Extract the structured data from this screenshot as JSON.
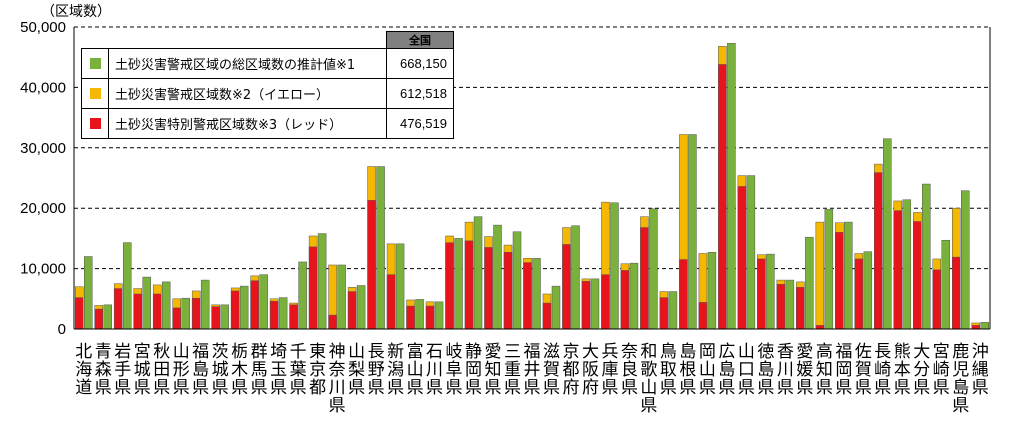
{
  "colors": {
    "red": "#e8141c",
    "yellow": "#f5b800",
    "green": "#7ab03c"
  },
  "legend": {
    "header": "全国",
    "items": [
      {
        "label": "土砂災害警戒区域の総区域数の推計値※1",
        "value": "668,150",
        "color_key": "green"
      },
      {
        "label": "土砂災害警戒区域数※2（イエロー）",
        "value": "612,518",
        "color_key": "yellow"
      },
      {
        "label": "土砂災害特別警戒区域数※3（レッド）",
        "value": "476,519",
        "color_key": "red"
      }
    ]
  },
  "chart_data": {
    "type": "bar",
    "ylabel": "（区域数）",
    "ylim": [
      0,
      50000
    ],
    "yticks": [
      "0",
      "10,000",
      "20,000",
      "30,000",
      "40,000",
      "50,000"
    ],
    "grid": "dashed horizontal",
    "categories": [
      "北海道",
      "青森県",
      "岩手県",
      "宮城県",
      "秋田県",
      "山形県",
      "福島県",
      "茨城県",
      "栃木県",
      "群馬県",
      "埼玉県",
      "千葉県",
      "東京都",
      "神奈川県",
      "山梨県",
      "長野県",
      "新潟県",
      "富山県",
      "石川県",
      "岐阜県",
      "静岡県",
      "愛知県",
      "三重県",
      "福井県",
      "滋賀県",
      "京都府",
      "大阪府",
      "兵庫県",
      "奈良県",
      "和歌山県",
      "鳥取県",
      "島根県",
      "岡山県",
      "広島県",
      "山口県",
      "徳島県",
      "香川県",
      "愛媛県",
      "高知県",
      "福岡県",
      "佐賀県",
      "長崎県",
      "熊本県",
      "大分県",
      "宮崎県",
      "鹿児島県",
      "沖縄県"
    ],
    "series": [
      {
        "name": "土砂災害特別警戒区域数※3（レッド）",
        "color_key": "red",
        "values": [
          5200,
          3300,
          6700,
          5800,
          5800,
          3500,
          5100,
          3700,
          6300,
          8000,
          4600,
          4000,
          13600,
          2300,
          6200,
          21300,
          9000,
          3800,
          3800,
          14300,
          14600,
          13500,
          12700,
          11000,
          4300,
          14000,
          7900,
          9000,
          9700,
          16800,
          5200,
          11500,
          4400,
          43800,
          23600,
          11600,
          7400,
          6900,
          600,
          16000,
          11600,
          25900,
          19600,
          17800,
          9800,
          11900,
          600
        ],
        "layout": "stacked"
      },
      {
        "name": "土砂災害警戒区域数※2（イエロー）",
        "color_key": "yellow",
        "values": [
          7000,
          3900,
          7500,
          6700,
          7300,
          5000,
          6300,
          4000,
          6800,
          8800,
          5000,
          4300,
          15400,
          10600,
          6900,
          26900,
          14100,
          4800,
          4500,
          15400,
          17700,
          15300,
          13900,
          11700,
          5800,
          16800,
          8300,
          21000,
          10800,
          18600,
          6200,
          32200,
          12500,
          46800,
          25400,
          12300,
          8100,
          7800,
          17700,
          17600,
          12500,
          27300,
          21200,
          19300,
          11600,
          20000,
          1000
        ],
        "layout": "stacked-total"
      },
      {
        "name": "土砂災害警戒区域の総区域数の推計値※1",
        "color_key": "green",
        "values": [
          12000,
          4000,
          14300,
          8600,
          7800,
          5100,
          8100,
          4000,
          7100,
          9000,
          5200,
          11100,
          15800,
          10600,
          7200,
          26900,
          14100,
          4900,
          4500,
          15000,
          18600,
          17200,
          16100,
          11700,
          7100,
          17100,
          8300,
          20900,
          10900,
          19900,
          6200,
          32200,
          12700,
          47300,
          25400,
          12400,
          8100,
          15200,
          19800,
          17700,
          12800,
          31500,
          21400,
          24000,
          14700,
          22900,
          1100
        ],
        "layout": "side"
      }
    ]
  }
}
